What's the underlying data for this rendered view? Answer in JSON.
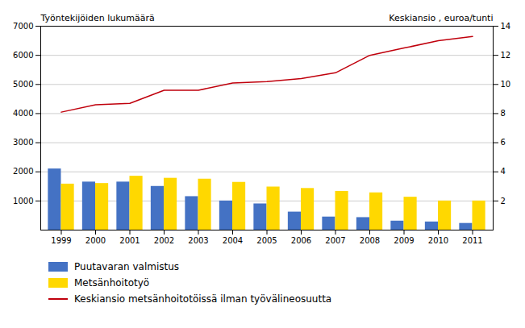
{
  "chart_data": {
    "type": "bar",
    "categories": [
      "1999",
      "2000",
      "2001",
      "2002",
      "2003",
      "2004",
      "2005",
      "2006",
      "2007",
      "2008",
      "2009",
      "2010",
      "2011"
    ],
    "series": [
      {
        "name": "Puutavaran valmistus",
        "type": "bar",
        "color": "#4472c4",
        "values": [
          2100,
          1650,
          1650,
          1500,
          1150,
          1000,
          900,
          620,
          450,
          430,
          310,
          280,
          230
        ]
      },
      {
        "name": "Metsänhoitotyö",
        "type": "bar",
        "color": "#ffd800",
        "values": [
          1580,
          1600,
          1850,
          1780,
          1750,
          1640,
          1480,
          1430,
          1330,
          1280,
          1130,
          1000,
          1000
        ]
      },
      {
        "name": "Keskiansio metsänhoitotöissä ilman työvälineosuutta",
        "type": "line",
        "axis": "y2",
        "color": "#c0000c",
        "values": [
          8.1,
          8.6,
          8.7,
          9.6,
          9.6,
          10.1,
          10.2,
          10.4,
          10.8,
          12.0,
          12.5,
          13.0,
          13.3
        ]
      }
    ],
    "ylabel": "Työntekijöiden lukumäärä",
    "y2label": "Keskiansio , euroa/tunti",
    "ylim": [
      0,
      7000
    ],
    "yticks": [
      1000,
      2000,
      3000,
      4000,
      5000,
      6000,
      7000
    ],
    "y2lim": [
      0,
      14
    ],
    "y2ticks": [
      2,
      4,
      6,
      8,
      10,
      12,
      14
    ],
    "grid": true,
    "legend": "bottom"
  }
}
